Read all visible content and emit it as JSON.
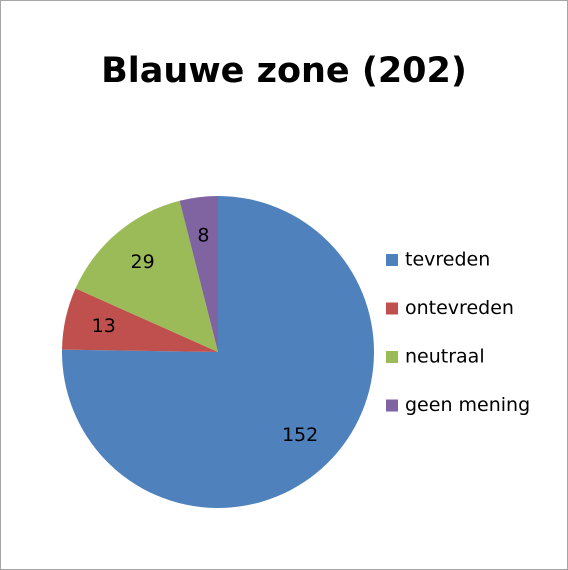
{
  "chart_data": {
    "type": "pie",
    "title": "Blauwe zone (202)",
    "categories": [
      "tevreden",
      "ontevreden",
      "neutraal",
      "geen mening"
    ],
    "values": [
      152,
      13,
      29,
      8
    ],
    "colors": [
      "#4f81bd",
      "#c0504d",
      "#9bbb59",
      "#8064a2"
    ],
    "legend": "right"
  }
}
